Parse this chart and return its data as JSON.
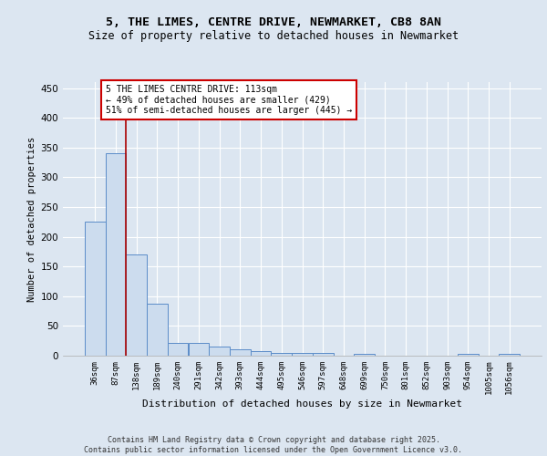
{
  "title1": "5, THE LIMES, CENTRE DRIVE, NEWMARKET, CB8 8AN",
  "title2": "Size of property relative to detached houses in Newmarket",
  "xlabel": "Distribution of detached houses by size in Newmarket",
  "ylabel": "Number of detached properties",
  "categories": [
    "36sqm",
    "87sqm",
    "138sqm",
    "189sqm",
    "240sqm",
    "291sqm",
    "342sqm",
    "393sqm",
    "444sqm",
    "495sqm",
    "546sqm",
    "597sqm",
    "648sqm",
    "699sqm",
    "750sqm",
    "801sqm",
    "852sqm",
    "903sqm",
    "954sqm",
    "1005sqm",
    "1056sqm"
  ],
  "values": [
    225,
    340,
    170,
    88,
    21,
    21,
    15,
    10,
    8,
    4,
    5,
    5,
    0,
    3,
    0,
    0,
    0,
    0,
    3,
    0,
    3
  ],
  "bar_color": "#ccdcee",
  "bar_edge_color": "#5b8cc8",
  "background_color": "#dce6f1",
  "plot_bg_color": "#dce6f1",
  "vline_color": "#aa0000",
  "annotation_text": "5 THE LIMES CENTRE DRIVE: 113sqm\n← 49% of detached houses are smaller (429)\n51% of semi-detached houses are larger (445) →",
  "annotation_box_edge_color": "#cc0000",
  "footer": "Contains HM Land Registry data © Crown copyright and database right 2025.\nContains public sector information licensed under the Open Government Licence v3.0.",
  "ylim": [
    0,
    460
  ],
  "yticks": [
    0,
    50,
    100,
    150,
    200,
    250,
    300,
    350,
    400,
    450
  ]
}
